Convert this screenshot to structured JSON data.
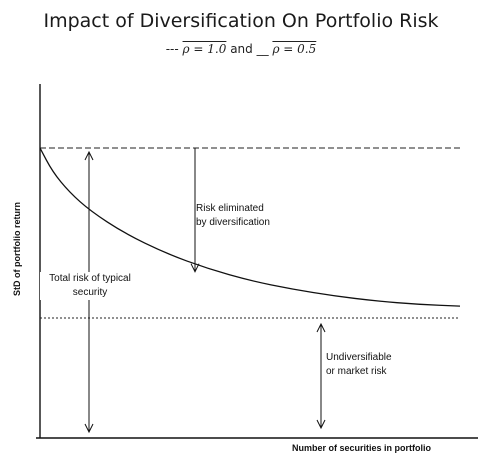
{
  "chart_data": {
    "type": "line",
    "title": "Impact of Diversification On Portfolio Risk",
    "subtitle": {
      "prefix": "---",
      "rho_1": "ρ = 1.0",
      "joiner": "and",
      "mid": "__",
      "rho_2": "ρ = 0.5"
    },
    "xlabel": "Number of securities in portfolio",
    "ylabel": "StD of portfolio return",
    "grid": false,
    "total_risk_level": 1.0,
    "market_risk_level": 0.0,
    "series": [
      {
        "values": [
          {
            "x": 0.0,
            "y": 1.0
          },
          {
            "x": 0.03,
            "y": 0.86
          },
          {
            "x": 0.07,
            "y": 0.74
          },
          {
            "x": 0.12,
            "y": 0.63
          },
          {
            "x": 0.2,
            "y": 0.5
          },
          {
            "x": 0.3,
            "y": 0.38
          },
          {
            "x": 0.4,
            "y": 0.29
          },
          {
            "x": 0.5,
            "y": 0.22
          },
          {
            "x": 0.6,
            "y": 0.17
          },
          {
            "x": 0.7,
            "y": 0.13
          },
          {
            "x": 0.8,
            "y": 0.1
          },
          {
            "x": 0.9,
            "y": 0.08
          },
          {
            "x": 1.0,
            "y": 0.07
          }
        ]
      }
    ],
    "annotations": {
      "risk_eliminated": [
        "Risk eliminated",
        "by diversification"
      ],
      "total_risk": [
        "Total risk of typical",
        "security"
      ],
      "market_risk": [
        "Undiversifiable",
        "or market risk"
      ]
    }
  }
}
